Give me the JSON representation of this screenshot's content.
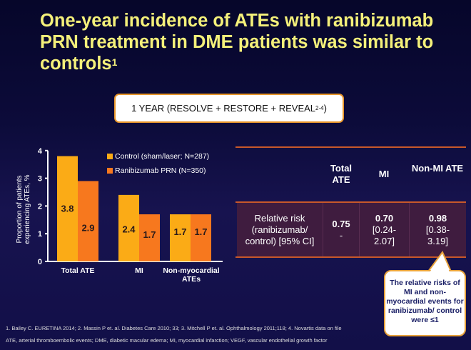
{
  "title": "One-year incidence of ATEs with ranibizumab PRN treatment in DME patients was similar to controls",
  "title_sup": "1",
  "year_box": {
    "text": "1 YEAR (RESOLVE + RESTORE + REVEAL",
    "sup": "2-4",
    "close": ")"
  },
  "colors": {
    "control": "#fbab16",
    "ranibizumab": "#f7781e",
    "title": "#f4f07a"
  },
  "chart_data": {
    "type": "bar",
    "categories": [
      "Total ATE",
      "MI",
      "Non-myocardial ATEs"
    ],
    "series": [
      {
        "name": "Control (sham/laser; N=287)",
        "values": [
          3.8,
          2.4,
          1.7
        ]
      },
      {
        "name": "Ranibizumab PRN (N=350)",
        "values": [
          2.9,
          1.7,
          1.7
        ]
      }
    ],
    "ylabel": "Proportion of patients experiencing ATEs, %",
    "ylim": [
      0,
      4
    ],
    "yticks": [
      "0",
      "1",
      "2",
      "3",
      "4"
    ],
    "legend": "top"
  },
  "table": {
    "headers": [
      "Total ATE",
      "MI",
      "Non-MI ATE"
    ],
    "row_label": "Relative risk (ranibizumab/ control) [95% CI]",
    "values": [
      {
        "v": "0.75",
        "ci": "-"
      },
      {
        "v": "0.70",
        "ci": "[0.24-2.07]"
      },
      {
        "v": "0.98",
        "ci": "[0.38-3.19]"
      }
    ]
  },
  "callout": "The relative risks of MI and non-myocardial events for ranibizumab/ control were ≤1",
  "footnotes": [
    "1. Bailey C. EURETINA 2014; 2. Massin P et. al. Diabetes Care 2010; 33; 3. Mitchell P et. al. Ophthalmology 2011;118; 4. Novartis data on file",
    "ATE, arterial thromboembolic events; DME, diabetic macular edema; MI, myocardial infarction; VEGF, vascular endothelial growth factor"
  ]
}
